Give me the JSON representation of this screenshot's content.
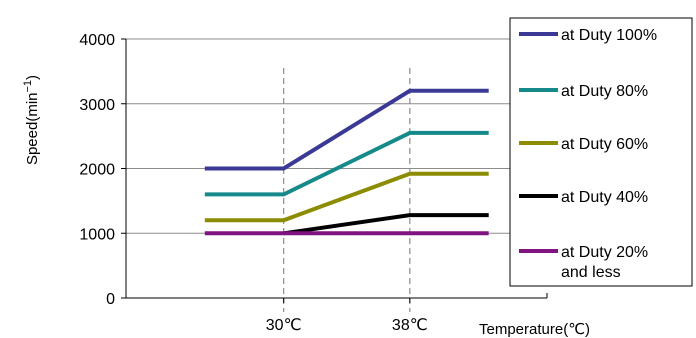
{
  "chart_data": {
    "type": "line",
    "xlabel": "Temperature(℃)",
    "ylabel": "Speed(min",
    "ylabel_sup": "−1",
    "ylim": [
      0,
      4000
    ],
    "yticks": [
      {
        "value": 0,
        "label": "0"
      },
      {
        "value": 1000,
        "label": "1000"
      },
      {
        "value": 2000,
        "label": "2000"
      },
      {
        "value": 3000,
        "label": "3000"
      },
      {
        "value": 4000,
        "label": "4000"
      }
    ],
    "xticks": [
      {
        "value": 30,
        "label": "30℃"
      },
      {
        "value": 38,
        "label": "38℃"
      }
    ],
    "reference_lines_x": [
      30,
      38
    ],
    "grid": "horizontal",
    "legend_position": "right",
    "series": [
      {
        "name": "at Duty 100%",
        "color": "#3a3a96",
        "points": [
          [
            25,
            2000
          ],
          [
            30,
            2000
          ],
          [
            38,
            3200
          ],
          [
            43,
            3200
          ]
        ]
      },
      {
        "name": "at Duty 80%",
        "color": "#168a8a",
        "points": [
          [
            25,
            1600
          ],
          [
            30,
            1600
          ],
          [
            38,
            2550
          ],
          [
            43,
            2550
          ]
        ]
      },
      {
        "name": "at Duty 60%",
        "color": "#8c8c00",
        "points": [
          [
            25,
            1200
          ],
          [
            30,
            1200
          ],
          [
            38,
            1920
          ],
          [
            43,
            1920
          ]
        ]
      },
      {
        "name": "at Duty 40%",
        "color": "#000000",
        "points": [
          [
            30,
            1000
          ],
          [
            38,
            1280
          ],
          [
            43,
            1280
          ]
        ]
      },
      {
        "name": "at Duty 20%\nand less",
        "color": "#7f137f",
        "points": [
          [
            25,
            1000
          ],
          [
            30,
            1000
          ],
          [
            38,
            1000
          ],
          [
            43,
            1000
          ]
        ]
      }
    ]
  }
}
